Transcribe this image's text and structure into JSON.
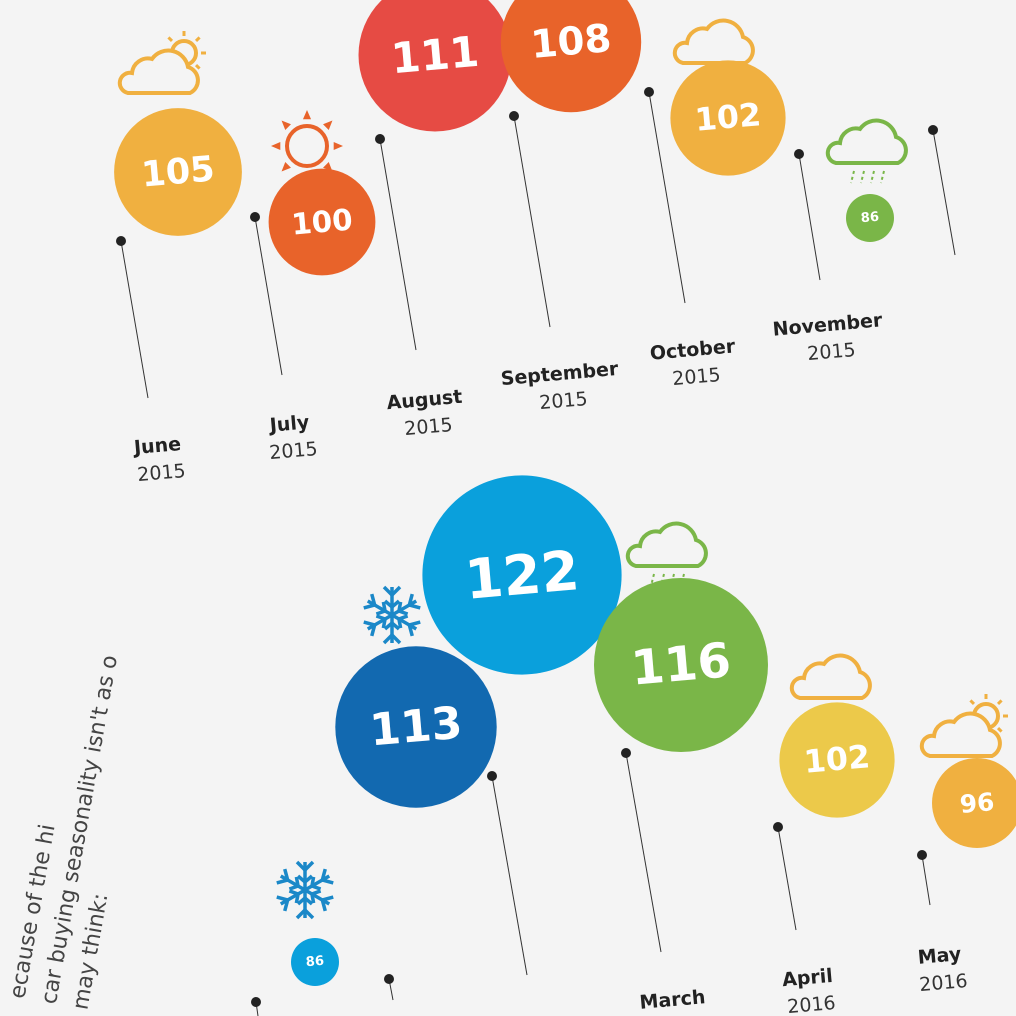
{
  "side_text": [
    "ecause of the hi",
    "car buying seasonality isn't as o",
    "may think:"
  ],
  "items": [
    {
      "month": "June",
      "year": "2015",
      "value": 105,
      "color": "#f0b040"
    },
    {
      "month": "July",
      "year": "2015",
      "value": 100,
      "color": "#e8632a"
    },
    {
      "month": "August",
      "year": "2015",
      "value": 111,
      "color": "#e64b44"
    },
    {
      "month": "September",
      "year": "2015",
      "value": 108,
      "color": "#e8632a"
    },
    {
      "month": "October",
      "year": "2015",
      "value": 102,
      "color": "#f0b040"
    },
    {
      "month": "November",
      "year": "2015",
      "value": 86,
      "color": "#7ab648"
    },
    {
      "value": 86,
      "color": "#0aa0dc"
    },
    {
      "value": 113,
      "color": "#1269b0"
    },
    {
      "value": 122,
      "color": "#0aa0dc"
    },
    {
      "month": "March",
      "value": 116,
      "color": "#7ab648"
    },
    {
      "month": "April",
      "year": "2016",
      "value": 102,
      "color": "#ecc94a"
    },
    {
      "month": "May",
      "year": "2016",
      "value": 96,
      "color": "#f0b040"
    }
  ]
}
